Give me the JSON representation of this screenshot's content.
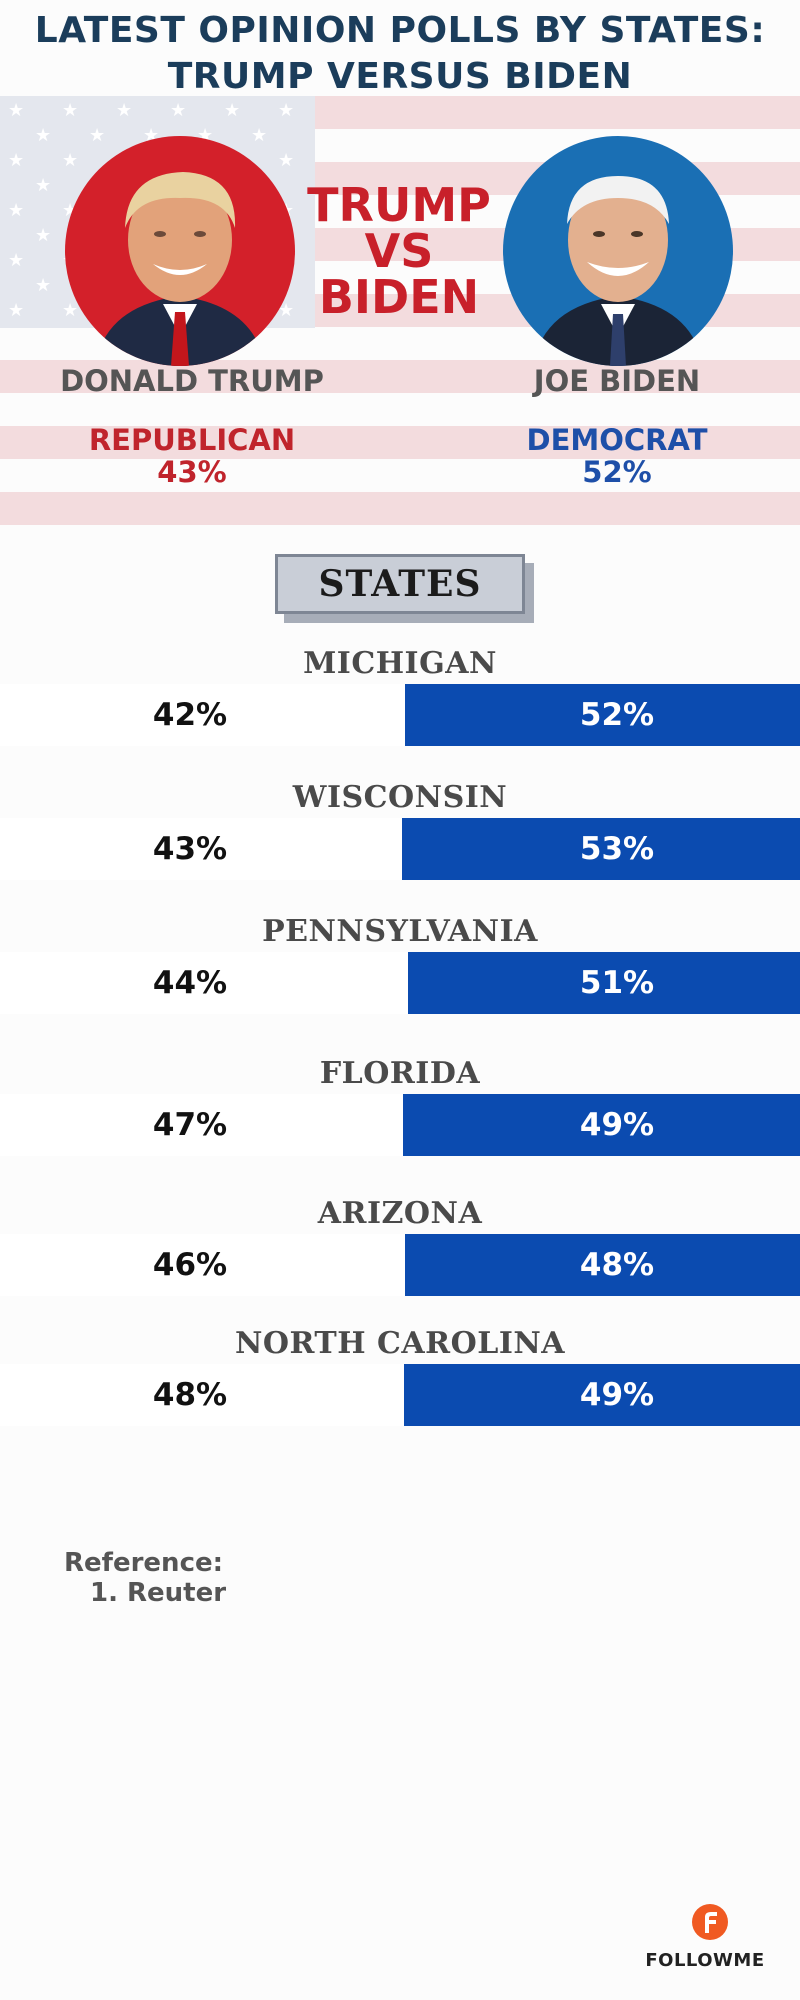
{
  "title": {
    "line1": "LATEST OPINION POLLS BY STATES:",
    "line2": "TRUMP VERSUS BIDEN"
  },
  "versus": {
    "line1": "TRUMP",
    "line2": "VS",
    "line3": "BIDEN"
  },
  "candidates": {
    "trump": {
      "name": "DONALD TRUMP",
      "party": "REPUBLICAN",
      "pct": "43%",
      "color": "#c0242c"
    },
    "biden": {
      "name": "JOE BIDEN",
      "party": "DEMOCRAT",
      "pct": "52%",
      "color": "#1e4fa8"
    }
  },
  "states_heading": "STATES",
  "chart_data": {
    "type": "bar",
    "categories": [
      "MICHIGAN",
      "WISCONSIN",
      "PENNSYLVANIA",
      "FLORIDA",
      "ARIZONA",
      "NORTH CAROLINA"
    ],
    "series": [
      {
        "values": [
          42,
          43,
          44,
          47,
          46,
          48
        ]
      },
      {
        "values": [
          52,
          53,
          51,
          49,
          48,
          49
        ],
        "color": "#0b4bb0"
      }
    ],
    "labels_trump": [
      "42%",
      "43%",
      "44%",
      "47%",
      "46%",
      "48%"
    ],
    "labels_biden": [
      "52%",
      "53%",
      "51%",
      "49%",
      "48%",
      "49%"
    ]
  },
  "reference": {
    "heading": "Reference:",
    "items": [
      "1. Reuter"
    ]
  },
  "brand": {
    "name": "FOLLOWME",
    "icon": "followme-logo-icon"
  }
}
